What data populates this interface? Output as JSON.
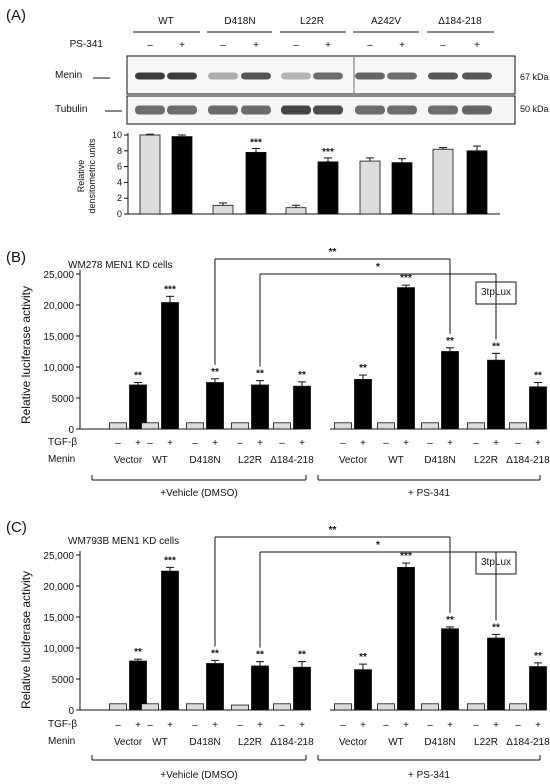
{
  "panelA": {
    "label": "(A)",
    "groups": [
      "WT",
      "D418N",
      "L22R",
      "A242V",
      "Δ184-218"
    ],
    "treatment_label": "PS-341",
    "signs": [
      "–",
      "+"
    ],
    "blots": [
      {
        "name": "Menin",
        "size": "67 kDa"
      },
      {
        "name": "Tubulin",
        "size": "50 kDa"
      }
    ],
    "menin_band_intensity": [
      1.0,
      1.0,
      0.3,
      0.85,
      0.25,
      0.7,
      0.75,
      0.7,
      0.85,
      0.85
    ],
    "tubulin_band_intensity": [
      0.7,
      0.7,
      0.72,
      0.72,
      0.95,
      0.9,
      0.7,
      0.7,
      0.7,
      0.75
    ],
    "chart_data": {
      "type": "bar",
      "ylabel_line1": "Relative",
      "ylabel_line2": "densitometric units",
      "ylim": [
        0,
        10
      ],
      "yticks": [
        0,
        2,
        4,
        6,
        8,
        10
      ],
      "bars": [
        {
          "group": "WT",
          "ps341": "–",
          "value": 10.0,
          "err": 0.1,
          "sig": ""
        },
        {
          "group": "WT",
          "ps341": "+",
          "value": 9.8,
          "err": 0.2,
          "sig": ""
        },
        {
          "group": "D418N",
          "ps341": "–",
          "value": 1.1,
          "err": 0.3,
          "sig": ""
        },
        {
          "group": "D418N",
          "ps341": "+",
          "value": 7.8,
          "err": 0.5,
          "sig": "***"
        },
        {
          "group": "L22R",
          "ps341": "–",
          "value": 0.8,
          "err": 0.3,
          "sig": ""
        },
        {
          "group": "L22R",
          "ps341": "+",
          "value": 6.6,
          "err": 0.5,
          "sig": "***"
        },
        {
          "group": "A242V",
          "ps341": "–",
          "value": 6.7,
          "err": 0.4,
          "sig": ""
        },
        {
          "group": "A242V",
          "ps341": "+",
          "value": 6.5,
          "err": 0.5,
          "sig": ""
        },
        {
          "group": "Δ184-218",
          "ps341": "–",
          "value": 8.2,
          "err": 0.2,
          "sig": ""
        },
        {
          "group": "Δ184-218",
          "ps341": "+",
          "value": 8.0,
          "err": 0.6,
          "sig": ""
        }
      ],
      "colors": {
        "minus": "#dcdcdc",
        "plus": "#000000"
      }
    }
  },
  "panelB": {
    "label": "(B)",
    "title": "WM278 MEN1 KD cells",
    "reporter": "3tpLux",
    "chart_data": {
      "type": "bar",
      "ylabel": "Relative luciferase activity",
      "ylim": [
        0,
        25000
      ],
      "yticks": [
        0,
        5000,
        10000,
        15000,
        20000,
        25000
      ],
      "ytick_labels": [
        "0",
        "5000",
        "10,000",
        "15,000",
        "20,000",
        "25,000"
      ],
      "categories": [
        "Vector",
        "WT",
        "D418N",
        "L22R",
        "Δ184-218",
        "Vector",
        "WT",
        "D418N",
        "L22R",
        "Δ184-218"
      ],
      "tgf_minus": [
        1000,
        1000,
        1000,
        1000,
        1000,
        1000,
        1000,
        1000,
        1000,
        1000
      ],
      "tgf_plus": [
        7100,
        20400,
        7500,
        7100,
        6900,
        8000,
        22800,
        12500,
        11100,
        6800
      ],
      "tgf_plus_err": [
        400,
        1000,
        600,
        700,
        700,
        700,
        400,
        600,
        1100,
        700
      ],
      "sig": [
        "**",
        "***",
        "**",
        "**",
        "**",
        "**",
        "***",
        "**",
        "**",
        "**"
      ],
      "group_labels": [
        "+Vehicle (DMSO)",
        "+ PS-341"
      ],
      "brackets": [
        {
          "from": 2,
          "to": 7,
          "sig": "**"
        },
        {
          "from": 3,
          "to": 8,
          "sig": "*"
        }
      ]
    }
  },
  "panelC": {
    "label": "(C)",
    "title": "WM793B MEN1 KD cells",
    "reporter": "3tpLux",
    "chart_data": {
      "type": "bar",
      "ylabel": "Relative luciferase activity",
      "ylim": [
        0,
        25000
      ],
      "yticks": [
        0,
        5000,
        10000,
        15000,
        20000,
        25000
      ],
      "ytick_labels": [
        "0",
        "5000",
        "10,000",
        "15,000",
        "20,000",
        "25,000"
      ],
      "categories": [
        "Vector",
        "WT",
        "D418N",
        "L22R",
        "Δ184-218",
        "Vector",
        "WT",
        "D418N",
        "L22R",
        "Δ184-218"
      ],
      "tgf_minus": [
        1000,
        1000,
        1000,
        800,
        1000,
        1000,
        1000,
        1000,
        1000,
        1000
      ],
      "tgf_plus": [
        7900,
        22400,
        7500,
        7100,
        6900,
        6500,
        23000,
        13100,
        11600,
        7000
      ],
      "tgf_plus_err": [
        300,
        600,
        500,
        700,
        900,
        900,
        700,
        300,
        600,
        600
      ],
      "sig": [
        "**",
        "***",
        "**",
        "**",
        "**",
        "**",
        "***",
        "**",
        "**",
        "**"
      ],
      "group_labels": [
        "+Vehicle (DMSO)",
        "+ PS-341"
      ],
      "brackets": [
        {
          "from": 2,
          "to": 7,
          "sig": "**"
        },
        {
          "from": 3,
          "to": 8,
          "sig": "*"
        }
      ]
    }
  },
  "row_labels": {
    "tgf": "TGF-β",
    "menin": "Menin"
  },
  "signs": [
    "–",
    "+"
  ]
}
